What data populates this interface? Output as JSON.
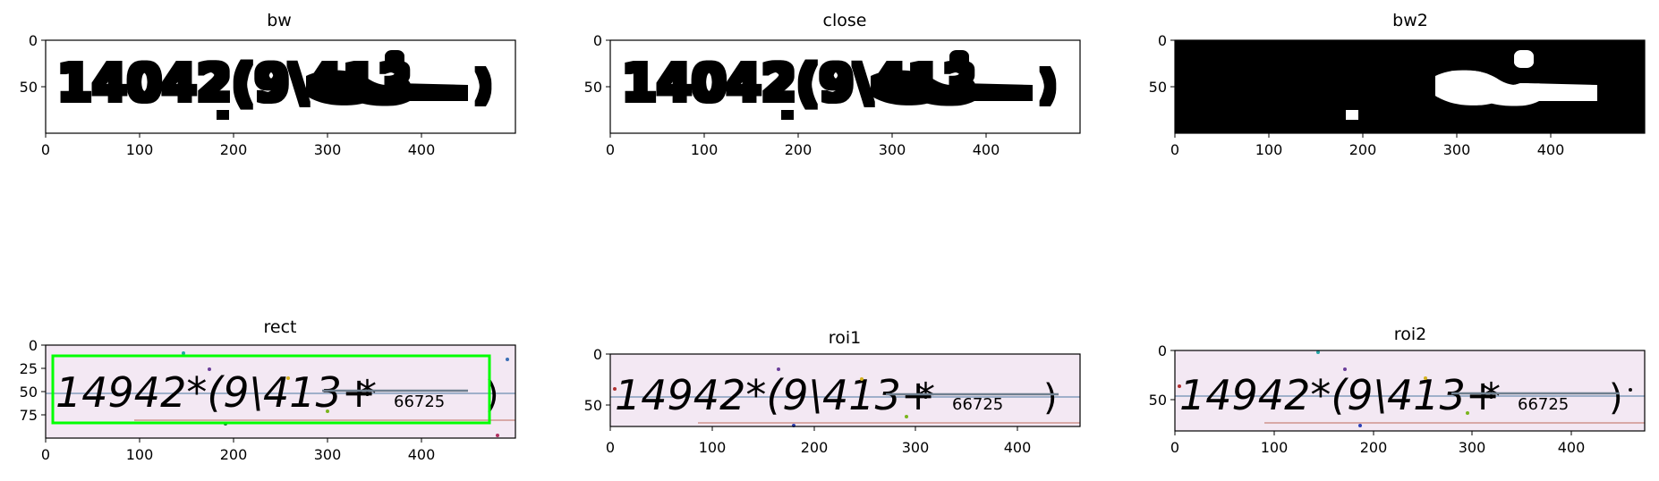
{
  "figure": {
    "panels": [
      {
        "id": "bw",
        "title": "bw",
        "kind": "binary_dark_on_light",
        "x_ticks": [
          "0",
          "100",
          "200",
          "300",
          "400"
        ],
        "y_ticks": [
          "0",
          "50"
        ]
      },
      {
        "id": "close",
        "title": "close",
        "kind": "binary_dark_on_light",
        "x_ticks": [
          "0",
          "100",
          "200",
          "300",
          "400"
        ],
        "y_ticks": [
          "0",
          "50"
        ]
      },
      {
        "id": "bw2",
        "title": "bw2",
        "kind": "binary_light_on_dark",
        "x_ticks": [
          "0",
          "100",
          "200",
          "300",
          "400"
        ],
        "y_ticks": [
          "0",
          "50"
        ]
      },
      {
        "id": "rect",
        "title": "rect",
        "kind": "captcha_rect",
        "x_ticks": [
          "0",
          "100",
          "200",
          "300",
          "400"
        ],
        "y_ticks": [
          "0",
          "25",
          "50",
          "75"
        ]
      },
      {
        "id": "roi1",
        "title": "roi1",
        "kind": "captcha",
        "x_ticks": [
          "0",
          "100",
          "200",
          "300",
          "400"
        ],
        "y_ticks": [
          "0",
          "50"
        ]
      },
      {
        "id": "roi2",
        "title": "roi2",
        "kind": "captcha",
        "x_ticks": [
          "0",
          "100",
          "200",
          "300",
          "400"
        ],
        "y_ticks": [
          "0",
          "50"
        ]
      }
    ]
  },
  "colors": {
    "foreground": "#000000",
    "captcha_bg": "#f3e8f3",
    "captcha_text": "#8a8a8a",
    "rect_box": "#00ff00",
    "noise_line_blue": "#6d8fb2",
    "noise_line_red": "#c7837a",
    "strike_line": "#6f7f8f"
  },
  "chart_data": [
    {
      "type": "image",
      "title": "bw",
      "xlim": [
        0,
        500
      ],
      "ylim": [
        100,
        0
      ],
      "x_ticks": [
        0,
        100,
        200,
        300,
        400
      ],
      "y_ticks": [
        0,
        50
      ]
    },
    {
      "type": "image",
      "title": "close",
      "xlim": [
        0,
        500
      ],
      "ylim": [
        100,
        0
      ],
      "x_ticks": [
        0,
        100,
        200,
        300,
        400
      ],
      "y_ticks": [
        0,
        50
      ]
    },
    {
      "type": "image",
      "title": "bw2",
      "xlim": [
        0,
        500
      ],
      "ylim": [
        100,
        0
      ],
      "x_ticks": [
        0,
        100,
        200,
        300,
        400
      ],
      "y_ticks": [
        0,
        50
      ]
    },
    {
      "type": "image",
      "title": "rect",
      "xlim": [
        0,
        500
      ],
      "ylim": [
        100,
        0
      ],
      "x_ticks": [
        0,
        100,
        200,
        300,
        400
      ],
      "y_ticks": [
        0,
        25,
        50,
        75
      ],
      "rectangle": {
        "x0": 8,
        "y0": 12,
        "x1": 473,
        "y1": 84
      }
    },
    {
      "type": "image",
      "title": "roi1",
      "xlim": [
        0,
        461
      ],
      "ylim": [
        71,
        0
      ],
      "x_ticks": [
        0,
        100,
        200,
        300,
        400
      ],
      "y_ticks": [
        0,
        50
      ]
    },
    {
      "type": "image",
      "title": "roi2",
      "xlim": [
        0,
        474
      ],
      "ylim": [
        82,
        0
      ],
      "x_ticks": [
        0,
        100,
        200,
        300,
        400
      ],
      "y_ticks": [
        0,
        50
      ]
    }
  ]
}
